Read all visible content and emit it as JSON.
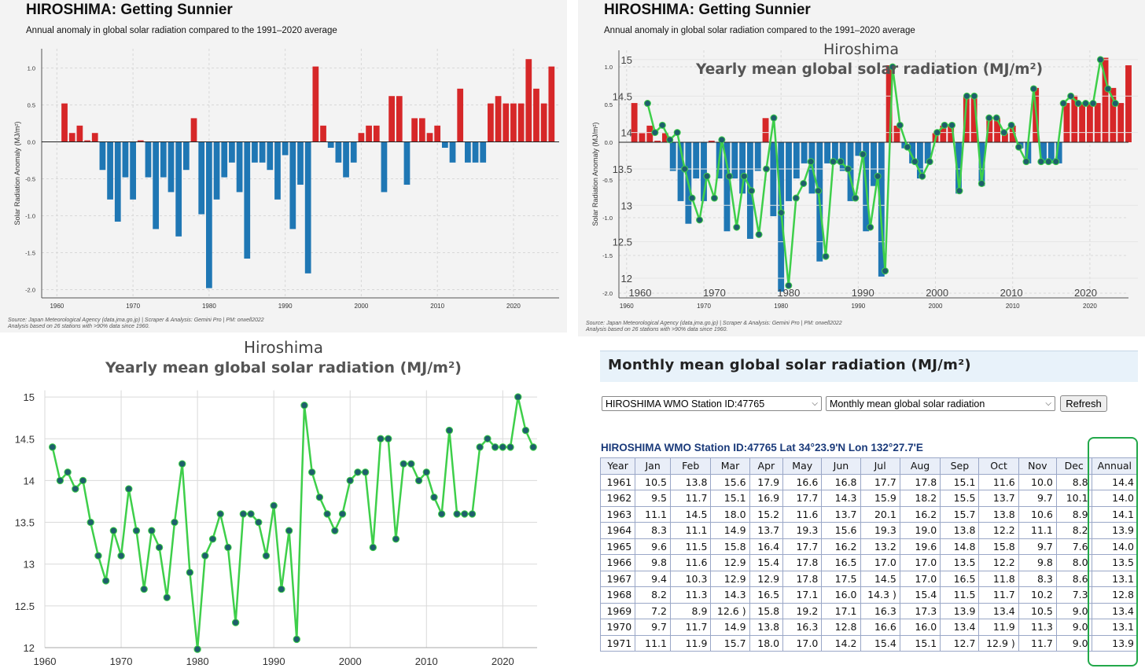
{
  "panel_left": {
    "title": "HIROSHIMA: Getting Sunnier",
    "subtitle": "Annual anomaly in global solar radiation compared to the 1991–2020 average",
    "source_line1": "Source: Japan Meteorological Agency (data.jma.go.jp) | Scraper & Analysis: Gemini Pro | PM: orwell2022",
    "source_line2": "Analysis based on 26 stations with >90% data since 1960."
  },
  "panel_overlay": {
    "title": "HIROSHIMA: Getting Sunnier",
    "subtitle": "Annual anomaly in global solar radiation compared to the 1991–2020 average",
    "source_line1": "Source: Japan Meteorological Agency (data.jma.go.jp) | Scraper & Analysis: Gemini Pro | PM: orwell2022",
    "source_line2": "Analysis based on 26 stations with >90% data since 1960.",
    "overlay_city": "Hiroshima",
    "overlay_title": "Yearly mean global solar radiation (MJ/m²)"
  },
  "panel_line": {
    "city": "Hiroshima",
    "title": "Yearly mean global solar radiation (MJ/m²)"
  },
  "panel_table": {
    "header": "Monthly mean global solar radiation (MJ/m²)",
    "station_select": "HIROSHIMA  WMO Station ID:47765",
    "element_select": "Monthly mean global solar radiation",
    "refresh_label": "Refresh",
    "station_line": "HIROSHIMA   WMO Station ID:47765 Lat 34°23.9'N  Lon 132°27.7'E",
    "columns": [
      "Year",
      "Jan",
      "Feb",
      "Mar",
      "Apr",
      "May",
      "Jun",
      "Jul",
      "Aug",
      "Sep",
      "Oct",
      "Nov",
      "Dec",
      "Annual"
    ],
    "rows": [
      [
        "1961",
        "10.5",
        "13.8",
        "15.6",
        "17.9",
        "16.6",
        "16.8",
        "17.7",
        "17.8",
        "15.1",
        "11.6",
        "10.0",
        "8.8",
        "14.4"
      ],
      [
        "1962",
        "9.5",
        "11.7",
        "15.1",
        "16.9",
        "17.7",
        "14.3",
        "15.9",
        "18.2",
        "15.5",
        "13.7",
        "9.7",
        "10.1",
        "14.0"
      ],
      [
        "1963",
        "11.1",
        "14.5",
        "18.0",
        "15.2",
        "11.6",
        "13.7",
        "20.1",
        "16.2",
        "15.7",
        "13.8",
        "10.6",
        "8.9",
        "14.1"
      ],
      [
        "1964",
        "8.3",
        "11.1",
        "14.9",
        "13.7",
        "19.3",
        "15.6",
        "19.3",
        "19.0",
        "13.8",
        "12.2",
        "11.1",
        "8.2",
        "13.9"
      ],
      [
        "1965",
        "9.6",
        "11.5",
        "15.8",
        "16.4",
        "17.7",
        "16.2",
        "13.2",
        "19.6",
        "14.8",
        "15.8",
        "9.7",
        "7.6",
        "14.0"
      ],
      [
        "1966",
        "9.8",
        "11.6",
        "12.9",
        "15.4",
        "17.8",
        "16.5",
        "17.0",
        "17.0",
        "13.5",
        "12.2",
        "9.8",
        "8.0",
        "13.5"
      ],
      [
        "1967",
        "9.4",
        "10.3",
        "12.9",
        "12.9",
        "17.8",
        "17.5",
        "14.5",
        "17.0",
        "16.5",
        "11.8",
        "8.3",
        "8.6",
        "13.1"
      ],
      [
        "1968",
        "8.2",
        "11.3",
        "14.3",
        "16.5",
        "17.1",
        "16.0",
        "14.3 )",
        "15.4",
        "11.5",
        "11.7",
        "10.2",
        "7.3",
        "12.8"
      ],
      [
        "1969",
        "7.2",
        "8.9",
        "12.6 )",
        "15.8",
        "19.2",
        "17.1",
        "16.3",
        "17.3",
        "13.9",
        "13.4",
        "10.5",
        "9.0",
        "13.4"
      ],
      [
        "1970",
        "9.7",
        "11.7",
        "14.9",
        "13.8",
        "16.3",
        "12.8",
        "16.6",
        "16.0",
        "13.4",
        "11.9",
        "11.3",
        "9.0",
        "13.1"
      ],
      [
        "1971",
        "11.1",
        "11.9",
        "15.7",
        "18.0",
        "17.0",
        "14.2",
        "15.4",
        "15.1",
        "12.7",
        "12.9 )",
        "11.7",
        "9.0",
        "13.9"
      ]
    ]
  },
  "chart_data": [
    {
      "type": "bar",
      "title": "HIROSHIMA: Getting Sunnier",
      "subtitle": "Annual anomaly in global solar radiation compared to the 1991–2020 average",
      "xlabel": "",
      "ylabel": "Solar Radiation Anomaly (MJ/m²)",
      "x_ticks": [
        1960,
        1970,
        1980,
        1990,
        2000,
        2010,
        2020
      ],
      "y_ticks": [
        1.0,
        0.5,
        0.0,
        -0.5,
        -1.0,
        -1.5,
        -2.0
      ],
      "ylim": [
        -2.1,
        1.3
      ],
      "xlim": [
        1958,
        2026
      ],
      "grid": true,
      "positive_color": "#d62728",
      "negative_color": "#1f77b4",
      "years": [
        1961,
        1962,
        1963,
        1964,
        1965,
        1966,
        1967,
        1968,
        1969,
        1970,
        1971,
        1972,
        1973,
        1974,
        1975,
        1976,
        1977,
        1978,
        1979,
        1980,
        1981,
        1982,
        1983,
        1984,
        1985,
        1986,
        1987,
        1988,
        1989,
        1990,
        1991,
        1992,
        1993,
        1994,
        1995,
        1996,
        1997,
        1998,
        1999,
        2000,
        2001,
        2002,
        2003,
        2004,
        2005,
        2006,
        2007,
        2008,
        2009,
        2010,
        2011,
        2012,
        2013,
        2014,
        2015,
        2016,
        2017,
        2018,
        2019,
        2020,
        2021,
        2022,
        2023,
        2024,
        2025
      ],
      "values": [
        0.52,
        0.12,
        0.22,
        0.02,
        0.12,
        -0.38,
        -0.78,
        -1.08,
        -0.48,
        -0.78,
        0.02,
        -0.48,
        -1.18,
        -0.48,
        -0.68,
        -1.28,
        -0.38,
        0.32,
        -0.98,
        -1.98,
        -0.78,
        -0.48,
        -0.28,
        -0.68,
        -1.58,
        -0.28,
        -0.28,
        -0.38,
        -0.78,
        -0.18,
        -1.18,
        -0.58,
        -1.78,
        1.02,
        0.22,
        -0.08,
        -0.28,
        -0.48,
        -0.28,
        0.12,
        0.22,
        0.22,
        -0.68,
        0.62,
        0.62,
        -0.58,
        0.32,
        0.32,
        0.12,
        0.22,
        -0.08,
        -0.28,
        0.72,
        -0.28,
        -0.28,
        -0.28,
        0.52,
        0.62,
        0.52,
        0.52,
        0.52,
        1.12,
        0.72,
        0.52,
        1.02
      ]
    },
    {
      "type": "bar",
      "title": "HIROSHIMA: Getting Sunnier",
      "subtitle": "Annual anomaly in global solar radiation compared to the 1991–2020 average",
      "ylabel": "Solar Radiation Anomaly (MJ/m²)",
      "x_ticks": [
        1960,
        1970,
        1980,
        1990,
        2000,
        2010,
        2020
      ],
      "y_ticks": [
        1.0,
        0.5,
        0.0,
        -0.5,
        -1.0,
        -1.5,
        -2.0
      ],
      "overlay": {
        "type": "line",
        "title": "Yearly mean global solar radiation (MJ/m²)",
        "y_ticks": [
          15,
          14.5,
          14,
          13.5,
          13,
          12.5,
          12
        ],
        "x_ticks": [
          1960,
          1970,
          1980,
          1990,
          2000,
          2010,
          2020
        ]
      }
    },
    {
      "type": "line",
      "title": "Yearly mean global solar radiation (MJ/m²)",
      "subtitle": "Hiroshima",
      "xlabel": "",
      "ylabel": "",
      "x_ticks": [
        1960,
        1970,
        1980,
        1990,
        2000,
        2010,
        2020
      ],
      "y_ticks": [
        15,
        14.5,
        14,
        13.5,
        13,
        12.5,
        12
      ],
      "ylim": [
        12,
        15.1
      ],
      "xlim": [
        1960,
        2024.5
      ],
      "grid": true,
      "line_color": "#3ecf4a",
      "marker_color": "#1e5f6b",
      "x": [
        1961,
        1962,
        1963,
        1964,
        1965,
        1966,
        1967,
        1968,
        1969,
        1970,
        1971,
        1972,
        1973,
        1974,
        1975,
        1976,
        1977,
        1978,
        1979,
        1980,
        1981,
        1982,
        1983,
        1984,
        1985,
        1986,
        1987,
        1988,
        1989,
        1990,
        1991,
        1992,
        1993,
        1994,
        1995,
        1996,
        1997,
        1998,
        1999,
        2000,
        2001,
        2002,
        2003,
        2004,
        2005,
        2006,
        2007,
        2008,
        2009,
        2010,
        2011,
        2012,
        2013,
        2014,
        2015,
        2016,
        2017,
        2018,
        2019,
        2020,
        2021,
        2022,
        2023,
        2024
      ],
      "y": [
        14.4,
        14.0,
        14.1,
        13.9,
        14.0,
        13.5,
        13.1,
        12.8,
        13.4,
        13.1,
        13.9,
        13.4,
        12.7,
        13.4,
        13.2,
        12.6,
        13.5,
        14.2,
        12.9,
        11.9,
        13.1,
        13.3,
        13.6,
        13.2,
        12.3,
        13.6,
        13.6,
        13.5,
        13.1,
        13.7,
        12.7,
        13.4,
        12.1,
        14.9,
        14.1,
        13.8,
        13.6,
        13.4,
        13.6,
        14.0,
        14.1,
        14.1,
        13.2,
        14.5,
        14.5,
        13.3,
        14.2,
        14.2,
        14.0,
        14.1,
        13.8,
        13.6,
        14.6,
        13.6,
        13.6,
        13.6,
        14.4,
        14.5,
        14.4,
        14.4,
        14.4,
        15.0,
        14.6,
        14.4
      ]
    }
  ]
}
